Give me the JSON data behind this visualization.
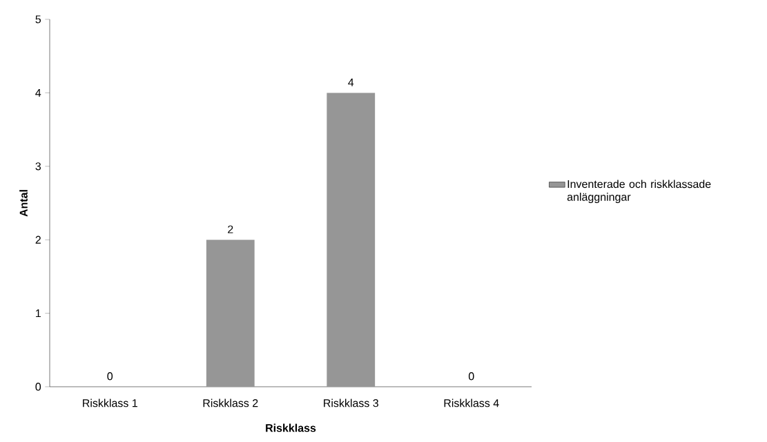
{
  "chart_data": {
    "type": "bar",
    "xlabel": "Riskklass",
    "ylabel": "Antal",
    "categories": [
      "Riskklass 1",
      "Riskklass 2",
      "Riskklass 3",
      "Riskklass 4"
    ],
    "series": [
      {
        "name": "Inventerade och riskklassade anläggningar",
        "color": "#969696",
        "values": [
          0,
          2,
          4,
          0
        ]
      }
    ],
    "ylim": [
      0,
      5
    ],
    "yticks": [
      0,
      1,
      2,
      3,
      4,
      5
    ],
    "data_labels": true,
    "legend": "right"
  }
}
